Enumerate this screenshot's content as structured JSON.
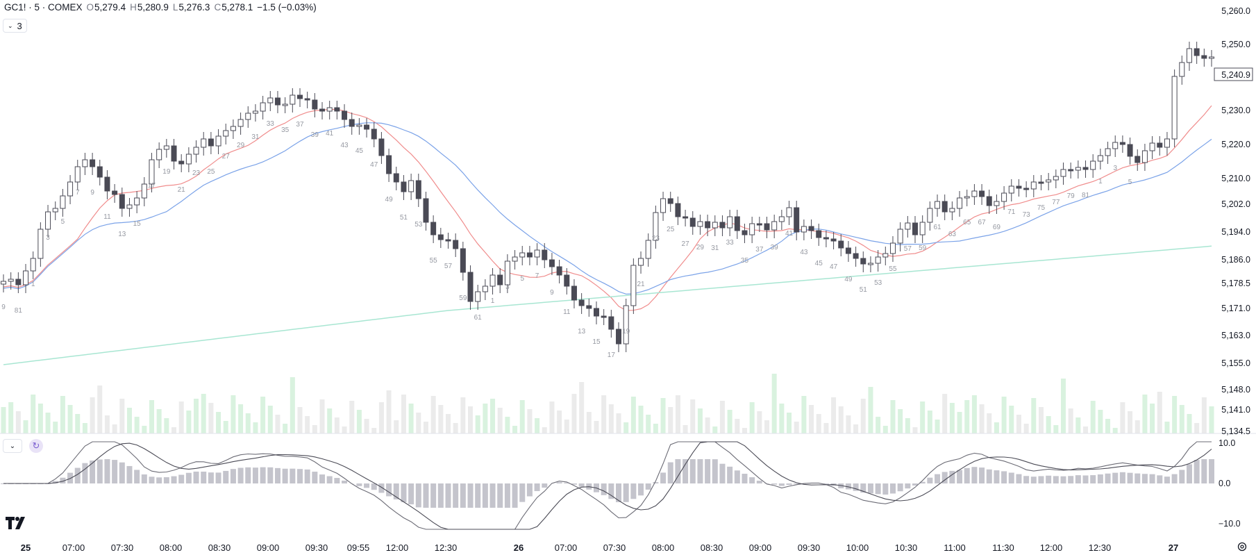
{
  "legend": {
    "symbol": "GC1! · 5 · COMEX",
    "open_label": "O",
    "open": "5,279.4",
    "high_label": "H",
    "high": "5,280.9",
    "low_label": "L",
    "low": "5,276.3",
    "close_label": "C",
    "close": "5,278.1",
    "change": "−1.5 (−0.03%)"
  },
  "indicators_collapse": {
    "count": "3",
    "icon": "chevron-down-icon"
  },
  "price_axis": {
    "labels": [
      "5,260.0",
      "5,250.0",
      "5,240.9",
      "5,230.0",
      "5,220.0",
      "5,210.0",
      "5,202.0",
      "5,194.0",
      "5,186.0",
      "5,178.5",
      "5,171.0",
      "5,163.0",
      "5,155.0",
      "5,148.0",
      "5,141.0",
      "5,134.5"
    ],
    "current_price": "5,240.9"
  },
  "macd_axis": {
    "labels": [
      "10.0",
      "0.0",
      "−10.0"
    ]
  },
  "time_axis": {
    "labels": [
      "25",
      "07:00",
      "07:30",
      "08:00",
      "08:30",
      "09:00",
      "09:30",
      "09:55",
      "12:00",
      "12:30",
      "26",
      "07:00",
      "07:30",
      "08:00",
      "08:30",
      "09:00",
      "09:30",
      "10:00",
      "10:30",
      "11:00",
      "11:30",
      "12:00",
      "12:30",
      "27"
    ],
    "bold": [
      "25",
      "26",
      "27"
    ]
  },
  "bar_counts": {
    "labels": [
      "9",
      "81",
      "1",
      "3",
      "5",
      "7",
      "9",
      "11",
      "13",
      "15",
      "17",
      "19",
      "21",
      "23",
      "25",
      "27",
      "29",
      "31",
      "33",
      "35",
      "37",
      "39",
      "41",
      "43",
      "45",
      "47",
      "49",
      "51",
      "53",
      "55",
      "57",
      "59",
      "61",
      "1",
      "3",
      "5",
      "7",
      "9",
      "11",
      "13",
      "15",
      "17",
      "19",
      "21",
      "23",
      "25",
      "27",
      "29",
      "31",
      "33",
      "35",
      "37",
      "39",
      "41",
      "43",
      "45",
      "47",
      "49",
      "51",
      "53",
      "55",
      "57",
      "59",
      "61",
      "63",
      "65",
      "67",
      "69",
      "71",
      "73",
      "75",
      "77",
      "79",
      "81",
      "1",
      "3",
      "5"
    ]
  },
  "colors": {
    "up_candle": "#ffffff",
    "down_candle": "#4a4a55",
    "candle_outline": "#4a4a55",
    "ma_fast": "#f08c8c",
    "ma_mid": "#7aa2e8",
    "ma_slow": "#a8e6d2",
    "volume_up": "#d9f2df",
    "volume_down": "#ebebeb",
    "macd_hist": "#c4c4cc"
  },
  "branding": {
    "logo": "TV",
    "settings_icon": "gear-icon",
    "sync_icon": "refresh-icon"
  }
}
